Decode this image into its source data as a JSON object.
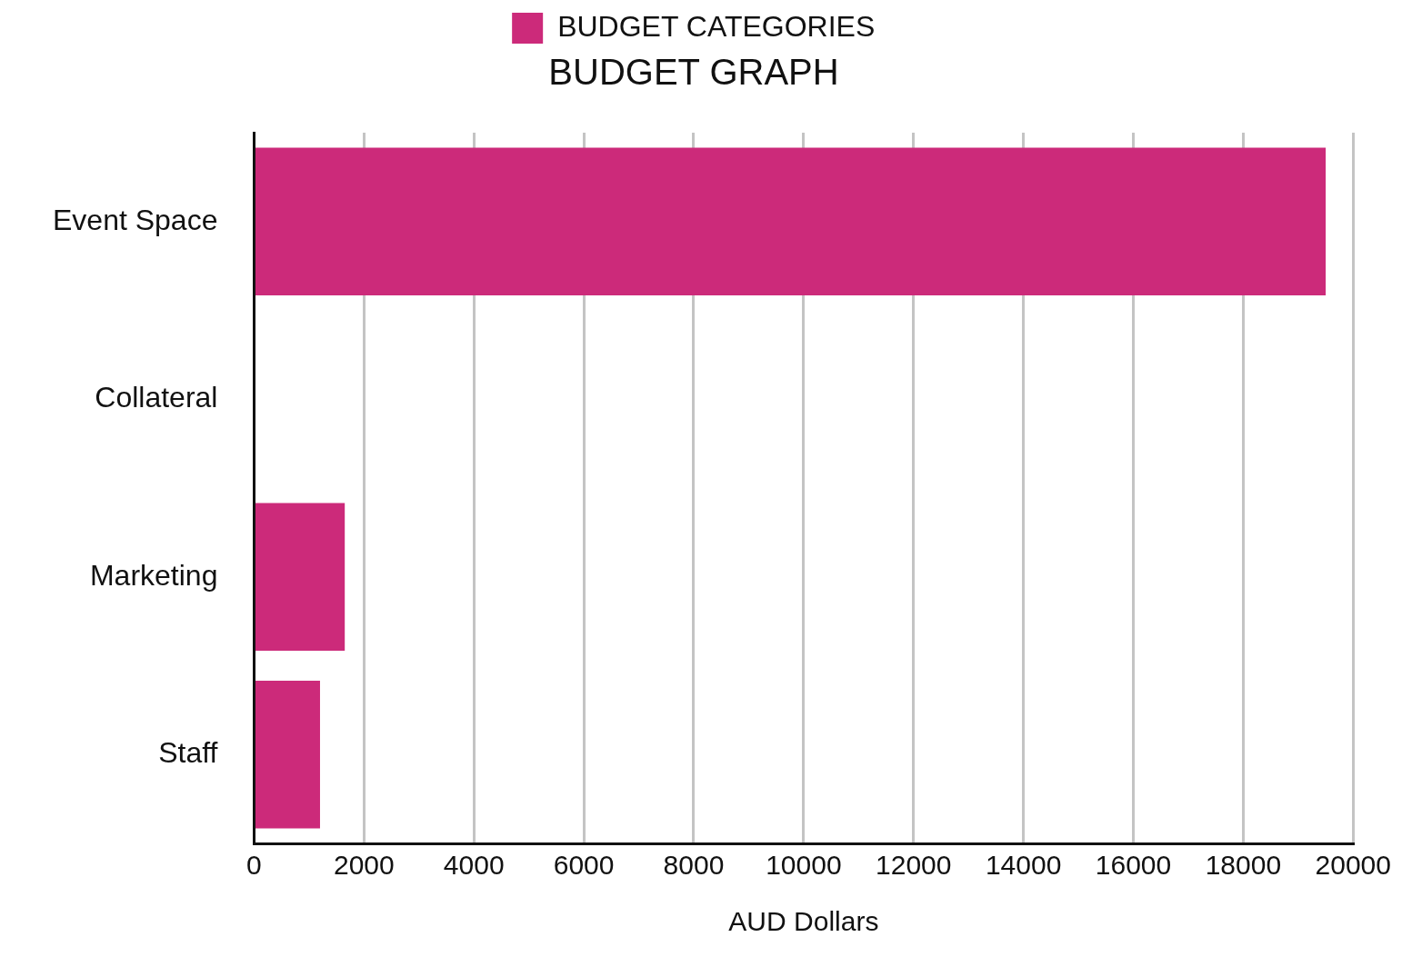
{
  "chart_data": {
    "type": "bar",
    "orientation": "horizontal",
    "title": "BUDGET GRAPH",
    "xlabel": "AUD Dollars",
    "categories": [
      "Event Space",
      "Collateral",
      "Marketing",
      "Staff"
    ],
    "series": [
      {
        "name": "BUDGET CATEGORIES",
        "color": "#cc2a7a",
        "values": [
          19500,
          0,
          1650,
          1200
        ]
      }
    ],
    "xlim": [
      0,
      20000
    ],
    "xticks": [
      0,
      2000,
      4000,
      6000,
      8000,
      10000,
      12000,
      14000,
      16000,
      18000,
      20000
    ],
    "grid": "x",
    "legend": "top"
  }
}
